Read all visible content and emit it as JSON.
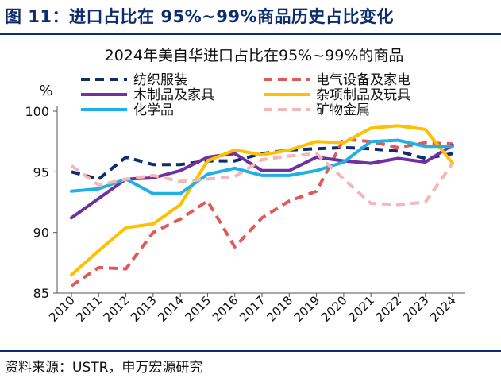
{
  "figure": {
    "title": "图 11：进口占比在 95%~99%商品历史占比变化",
    "source": "资料来源：USTR，申万宏源研究"
  },
  "chart_data": {
    "type": "line",
    "title": "2024年美自华进口占比在95%~99%的商品",
    "ylabel": "%",
    "xlabel": "",
    "ylim": [
      85,
      100
    ],
    "yticks": [
      85,
      90,
      95,
      100
    ],
    "x": [
      "2010",
      "2011",
      "2012",
      "2013",
      "2014",
      "2015",
      "2016",
      "2017",
      "2018",
      "2019",
      "2020",
      "2021",
      "2022",
      "2023",
      "2024"
    ],
    "legend_position": "top",
    "series": [
      {
        "name": "纺织服装",
        "color": "#0d2d6e",
        "dash": "dash",
        "values": [
          95.0,
          94.4,
          96.2,
          95.6,
          95.6,
          95.9,
          95.9,
          96.5,
          96.8,
          96.9,
          97.0,
          96.9,
          96.7,
          96.1,
          96.5
        ]
      },
      {
        "name": "电气设备及家电",
        "color": "#e05a5a",
        "dash": "dash",
        "values": [
          85.6,
          87.1,
          87.0,
          90.0,
          91.1,
          92.6,
          88.8,
          91.2,
          92.6,
          93.4,
          97.7,
          97.5,
          97.0,
          97.4,
          97.3
        ]
      },
      {
        "name": "木制品及家具",
        "color": "#7030a0",
        "dash": "solid",
        "values": [
          91.2,
          92.8,
          94.4,
          94.5,
          95.1,
          96.2,
          96.5,
          95.1,
          95.1,
          96.2,
          95.9,
          95.7,
          96.1,
          95.8,
          97.2
        ]
      },
      {
        "name": "杂项制品及玩具",
        "color": "#ffc000",
        "dash": "solid",
        "values": [
          86.5,
          88.5,
          90.4,
          90.7,
          92.3,
          95.9,
          96.8,
          96.4,
          96.8,
          97.5,
          97.4,
          98.6,
          98.8,
          98.5,
          95.7
        ]
      },
      {
        "name": "化学品",
        "color": "#1fb1e6",
        "dash": "solid",
        "values": [
          93.4,
          93.6,
          94.4,
          93.2,
          93.2,
          94.8,
          95.3,
          94.7,
          94.7,
          95.1,
          95.8,
          97.5,
          97.6,
          97.1,
          97.1
        ]
      },
      {
        "name": "矿物金属",
        "color": "#f4b6b6",
        "dash": "dash",
        "values": [
          95.5,
          93.9,
          94.4,
          94.7,
          94.2,
          94.4,
          94.6,
          96.0,
          96.3,
          96.5,
          94.4,
          92.4,
          92.3,
          92.5,
          95.7
        ]
      }
    ]
  }
}
